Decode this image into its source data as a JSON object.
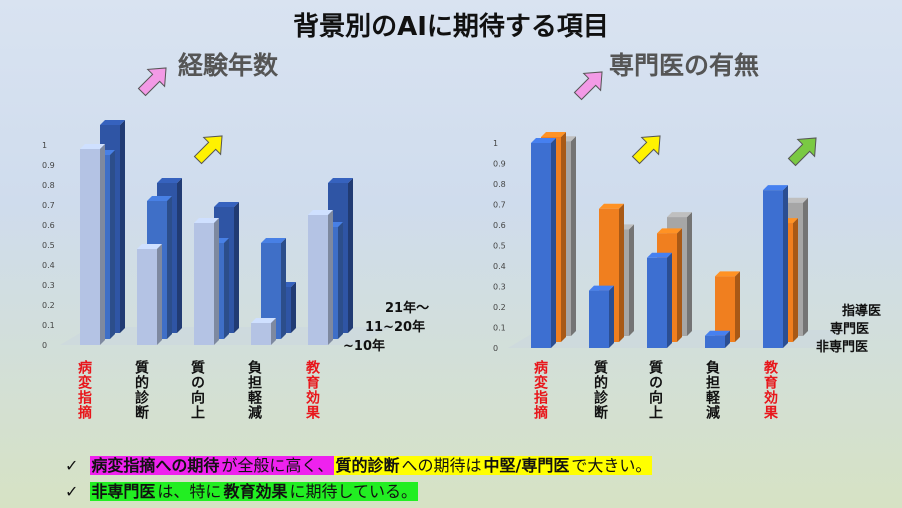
{
  "slide_title": "背景別のAIに期待する項目",
  "categories": [
    "病変指摘",
    "質的診断",
    "質の向上",
    "負担軽減",
    "教育効果"
  ],
  "category_colors": [
    "#e8161b",
    "#111111",
    "#111111",
    "#111111",
    "#e8161b"
  ],
  "chart_data": [
    {
      "type": "bar",
      "title": "経験年数",
      "categories": [
        "病変指摘",
        "質的診断",
        "質の向上",
        "負担軽減",
        "教育効果"
      ],
      "series": [
        {
          "name": "~10年",
          "color": "#b4c3e4",
          "values": [
            0.98,
            0.48,
            0.61,
            0.11,
            0.65
          ]
        },
        {
          "name": "11~20年",
          "color": "#3f6fc7",
          "values": [
            0.92,
            0.69,
            0.48,
            0.48,
            0.56
          ]
        },
        {
          "name": "21年～",
          "color": "#2f55a5",
          "values": [
            1.04,
            0.75,
            0.63,
            0.23,
            0.75
          ]
        }
      ],
      "yticks": [
        "0",
        "0.1",
        "0.2",
        "0.3",
        "0.4",
        "0.5",
        "0.6",
        "0.7",
        "0.8",
        "0.9",
        "1"
      ],
      "ylim": [
        0,
        1
      ],
      "legend_lines": [
        "21年～",
        "11~20年",
        "~10年"
      ]
    },
    {
      "type": "bar",
      "title": "専門医の有無",
      "categories": [
        "病変指摘",
        "質的診断",
        "質の向上",
        "負担軽減",
        "教育効果"
      ],
      "series": [
        {
          "name": "非専門医",
          "color": "#3d6fd1",
          "values": [
            1.0,
            0.28,
            0.44,
            0.06,
            0.77
          ]
        },
        {
          "name": "専門医",
          "color": "#f07f1f",
          "values": [
            1.0,
            0.65,
            0.53,
            0.32,
            0.58
          ]
        },
        {
          "name": "指導医",
          "color": "#a6a6a6",
          "values": [
            0.95,
            0.52,
            0.58,
            0.0,
            0.65
          ]
        }
      ],
      "yticks": [
        "0",
        "0.1",
        "0.2",
        "0.3",
        "0.4",
        "0.5",
        "0.6",
        "0.7",
        "0.8",
        "0.9",
        "1"
      ],
      "ylim": [
        0,
        1
      ],
      "legend_lines": [
        "指導医",
        "専門医",
        "非専門医"
      ]
    }
  ],
  "summary": {
    "check": "✓",
    "line1": [
      {
        "text": "病変指摘への期待",
        "hl": "mag",
        "bold": true
      },
      {
        "text": "が全般に高く、",
        "hl": "mag",
        "bold": false
      },
      {
        "text": "質的診断",
        "hl": "yel",
        "bold": true
      },
      {
        "text": "への期待は",
        "hl": "yel",
        "bold": false
      },
      {
        "text": "中堅/専門医",
        "hl": "yel",
        "bold": true
      },
      {
        "text": "で大きい。",
        "hl": "yel",
        "bold": false
      }
    ],
    "line2": [
      {
        "text": "非専門医",
        "hl": "grn",
        "bold": true
      },
      {
        "text": "は、特に",
        "hl": "grn",
        "bold": false
      },
      {
        "text": "教育効果",
        "hl": "grn",
        "bold": true
      },
      {
        "text": "に期待している。",
        "hl": "grn",
        "bold": false
      }
    ]
  },
  "arrows": [
    {
      "color": "#f39ae6",
      "chart": 0,
      "category": 0
    },
    {
      "color": "#fff200",
      "chart": 0,
      "category": 1
    },
    {
      "color": "#f39ae6",
      "chart": 1,
      "category": 0
    },
    {
      "color": "#fff200",
      "chart": 1,
      "category": 1
    },
    {
      "color": "#7ac943",
      "chart": 1,
      "category": 4
    }
  ]
}
